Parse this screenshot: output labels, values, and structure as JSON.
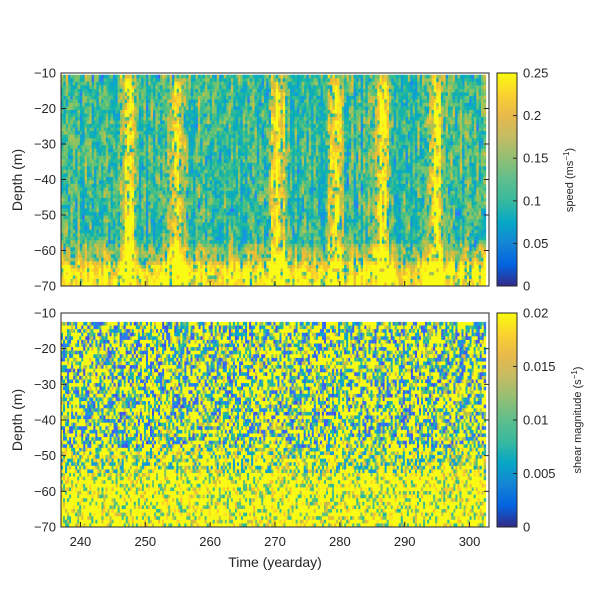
{
  "chart_data": [
    {
      "type": "heatmap",
      "panel": "top",
      "ylabel": "Depth (m)",
      "xlim": [
        237,
        303
      ],
      "ylim": [
        -70,
        -10
      ],
      "yticks": [
        -70,
        -60,
        -50,
        -40,
        -30,
        -20,
        -10
      ],
      "colorbar": {
        "label": "speed (ms",
        "label_sup": "−1",
        "label_end": ")",
        "range": [
          0,
          0.25
        ],
        "ticks": [
          "0",
          "0.05",
          "0.1",
          "0.15",
          "0.2",
          "0.25"
        ]
      },
      "colormap": "parula",
      "data_extent": {
        "x": [
          237,
          302.5
        ],
        "depth": [
          -69.5,
          -10.5
        ]
      },
      "bright_columns_yearday": [
        247.5,
        254.8,
        270.5,
        279.3,
        286.5,
        294.8
      ],
      "surface_saturated_depth_below": -63
    },
    {
      "type": "heatmap",
      "panel": "bottom",
      "xlabel": "Time (yearday)",
      "ylabel": "Depth (m)",
      "xlim": [
        237,
        303
      ],
      "ylim": [
        -70,
        -10
      ],
      "xticks": [
        240,
        250,
        260,
        270,
        280,
        290,
        300
      ],
      "yticks": [
        -70,
        -60,
        -50,
        -40,
        -30,
        -20,
        -10
      ],
      "colorbar": {
        "label": "shear magnitude (s",
        "label_sup": "−1",
        "label_end": ")",
        "range": [
          0,
          0.02
        ],
        "ticks": [
          "0",
          "0.005",
          "0.01",
          "0.015",
          "0.02"
        ]
      },
      "colormap": "parula",
      "data_extent": {
        "x": [
          237,
          302.5
        ],
        "depth": [
          -69.5,
          -12.5
        ]
      },
      "saturated_depth_below": -55
    }
  ]
}
